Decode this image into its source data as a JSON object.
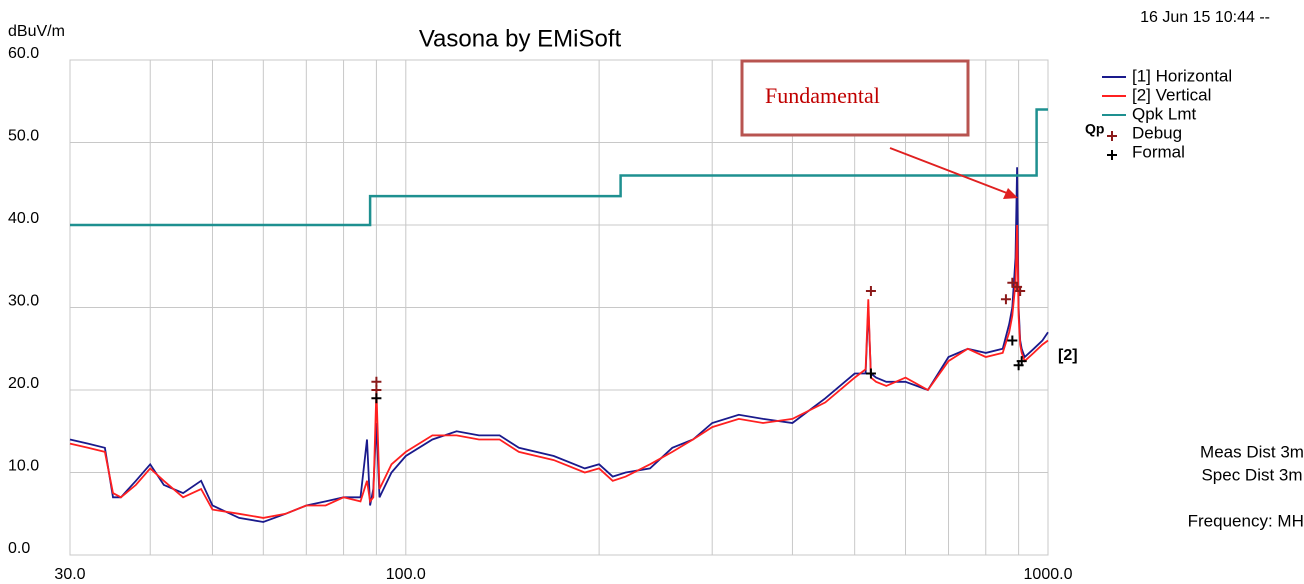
{
  "chart_data": {
    "type": "line",
    "title": "Vasona by EMiSoft",
    "timestamp": "16 Jun 15 10:44 --",
    "ylabel": "dBuV/m",
    "limit_tag": "Qp",
    "trace_tag": "[2]",
    "notes": [
      "Meas Dist 3m",
      "Spec Dist 3m",
      "Frequency: MHz"
    ],
    "annotation": "Fundamental",
    "xscale": "log",
    "grid": true,
    "xlim": [
      30,
      1000
    ],
    "ylim": [
      0,
      60
    ],
    "yticks": [
      {
        "value": 0,
        "label": "0.0"
      },
      {
        "value": 10,
        "label": "10.0"
      },
      {
        "value": 20,
        "label": "20.0"
      },
      {
        "value": 30,
        "label": "30.0"
      },
      {
        "value": 40,
        "label": "40.0"
      },
      {
        "value": 50,
        "label": "50.0"
      },
      {
        "value": 60,
        "label": "60.0"
      }
    ],
    "xticks": [
      {
        "value": 30,
        "label": "30.0"
      },
      {
        "value": 100,
        "label": "100.0"
      },
      {
        "value": 1000,
        "label": "1000.0"
      }
    ],
    "xgrid": [
      40,
      50,
      60,
      70,
      80,
      90,
      200,
      300,
      400,
      500,
      600,
      700,
      800,
      900
    ],
    "x": [
      30,
      32,
      34,
      35,
      36,
      38,
      40,
      42,
      45,
      48,
      50,
      55,
      60,
      65,
      70,
      75,
      80,
      85,
      87,
      88,
      89,
      90,
      91,
      95,
      100,
      110,
      120,
      130,
      140,
      150,
      170,
      190,
      200,
      210,
      220,
      240,
      260,
      280,
      300,
      330,
      360,
      400,
      450,
      500,
      520,
      525,
      530,
      540,
      560,
      600,
      650,
      700,
      750,
      800,
      850,
      870,
      880,
      890,
      895,
      900,
      905,
      910,
      920,
      950,
      980,
      1000
    ],
    "series": [
      {
        "name": "[1] Horizontal",
        "color": "#1a1a8c",
        "values": [
          14,
          13.5,
          13,
          7,
          7,
          9,
          11,
          8.5,
          7.5,
          9,
          6,
          4.5,
          4,
          5,
          6,
          6.5,
          7,
          7,
          14,
          6,
          8,
          16,
          7,
          10,
          12,
          14,
          15,
          14.5,
          14.5,
          13,
          12,
          10.5,
          11,
          9.5,
          10,
          10.5,
          13,
          14,
          16,
          17,
          16.5,
          16,
          19,
          22,
          22,
          30,
          22,
          21.5,
          21,
          21,
          20,
          24,
          25,
          24.5,
          25,
          28,
          30,
          36,
          47,
          30,
          26,
          25,
          24,
          25,
          26,
          27
        ]
      },
      {
        "name": "[2] Vertical",
        "color": "#ff2020",
        "values": [
          13.5,
          13,
          12.5,
          7.5,
          7,
          8.5,
          10.5,
          9,
          7,
          8,
          5.5,
          5,
          4.5,
          5,
          6,
          6,
          7,
          6.5,
          9,
          6.5,
          7,
          20,
          8,
          11,
          12.5,
          14.5,
          14.5,
          14,
          14,
          12.5,
          11.5,
          10,
          10.5,
          9,
          9.5,
          11,
          12.5,
          14,
          15.5,
          16.5,
          16,
          16.5,
          18.5,
          21.5,
          22.5,
          31,
          21.5,
          21,
          20.5,
          21.5,
          20,
          23.5,
          25,
          24,
          24.5,
          27,
          29,
          33,
          40,
          29,
          25.5,
          24.5,
          23.5,
          24.5,
          25.5,
          26
        ]
      },
      {
        "name": "Qpk Lmt",
        "color": "#1e9090",
        "x": [
          30,
          88,
          88,
          216,
          216,
          960,
          960,
          1000
        ],
        "values": [
          40,
          40,
          43.5,
          43.5,
          46,
          46,
          54,
          54
        ]
      }
    ],
    "markers": [
      {
        "name": "Debug",
        "color": "#8b1a1a",
        "x": [
          90,
          90,
          530,
          860,
          880,
          895,
          905
        ],
        "values": [
          21,
          20,
          32,
          31,
          33,
          32.5,
          32
        ]
      },
      {
        "name": "Formal",
        "color": "#000000",
        "x": [
          90,
          530,
          880,
          900,
          910
        ],
        "values": [
          19,
          22,
          26,
          23,
          23.5
        ]
      }
    ]
  }
}
